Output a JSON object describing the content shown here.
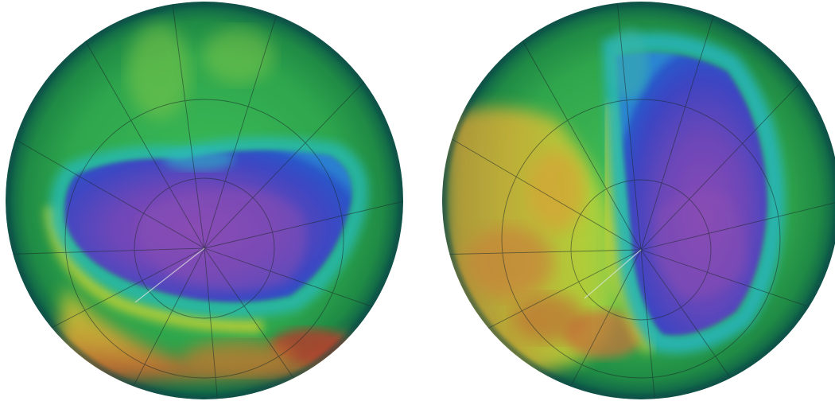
{
  "globes": [
    {
      "id": "left",
      "colors": {
        "ocean": "#2fa84f",
        "hole_core": "#7a47b8",
        "hole_edge": "#2a4fc8",
        "ring_cyan": "#27b6b8",
        "ring_yellow": "#d8cf2a",
        "ring_orange": "#d27a2a",
        "ring_red": "#b2402e"
      }
    },
    {
      "id": "right",
      "colors": {
        "ocean": "#2fa84f",
        "hole_core": "#7a47b8",
        "hole_edge": "#2a4fc8",
        "ring_cyan": "#27b6b8",
        "ring_yellow": "#d8cf2a",
        "ring_orange": "#d27a2a",
        "ring_red": "#b2402e"
      }
    }
  ]
}
